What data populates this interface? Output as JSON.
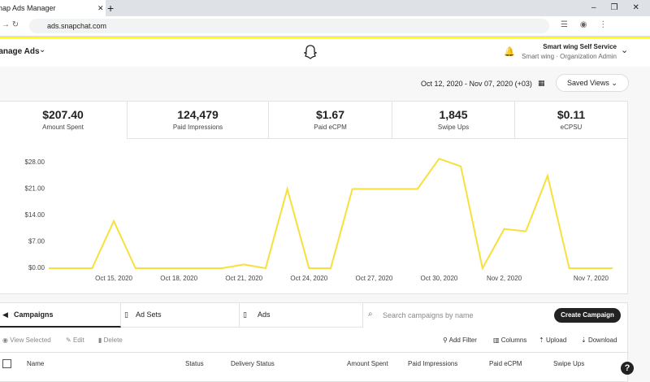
{
  "browser": {
    "tab_title": "Snap Ads Manager",
    "url": "ads.snapchat.com"
  },
  "header": {
    "menu": "Manage Ads",
    "account_name": "Smart wing Self Service",
    "account_role": "Smart wing · Organization Admin"
  },
  "date_range": "Oct 12, 2020 - Nov 07, 2020 (+03)",
  "saved_views": "Saved Views",
  "metrics": [
    {
      "value": "$207.40",
      "label": "Amount Spent"
    },
    {
      "value": "124,479",
      "label": "Paid Impressions"
    },
    {
      "value": "$1.67",
      "label": "Paid eCPM"
    },
    {
      "value": "1,845",
      "label": "Swipe Ups"
    },
    {
      "value": "$0.11",
      "label": "eCPSU"
    }
  ],
  "chart_data": {
    "type": "line",
    "categories": [
      null,
      null,
      null,
      "Oct 15, 2020",
      null,
      null,
      "Oct 18, 2020",
      null,
      null,
      "Oct 21, 2020",
      null,
      null,
      "Oct 24, 2020",
      null,
      null,
      "Oct 27, 2020",
      null,
      null,
      "Oct 30, 2020",
      null,
      null,
      "Nov 2, 2020",
      null,
      null,
      null,
      null,
      "Nov 7, 2020"
    ],
    "values": [
      0,
      0,
      0,
      12.5,
      0,
      0,
      0,
      0,
      0,
      1,
      0,
      21,
      0,
      0,
      21,
      21,
      21,
      21,
      29,
      27,
      0,
      10.4,
      9.8,
      24.5,
      0,
      0,
      0
    ],
    "color": "#f7e03c",
    "ylim": [
      0,
      30
    ],
    "yticks": [
      {
        "value": 0,
        "label": "$0.00"
      },
      {
        "value": 7,
        "label": "$7.00"
      },
      {
        "value": 14,
        "label": "$14.00"
      },
      {
        "value": 21,
        "label": "$21.00"
      },
      {
        "value": 28,
        "label": "$28.00"
      }
    ],
    "grid": false
  },
  "tabs": [
    "Campaigns",
    "Ad Sets",
    "Ads"
  ],
  "search_placeholder": "Search campaigns by name",
  "create_button": "Create Campaign",
  "actions": [
    "View Selected",
    "Edit",
    "Delete"
  ],
  "tools": [
    "Add Filter",
    "Columns",
    "Upload",
    "Download"
  ],
  "columns": [
    "Name",
    "Status",
    "Delivery Status",
    "Amount Spent",
    "Paid Impressions",
    "Paid eCPM",
    "Swipe Ups"
  ]
}
